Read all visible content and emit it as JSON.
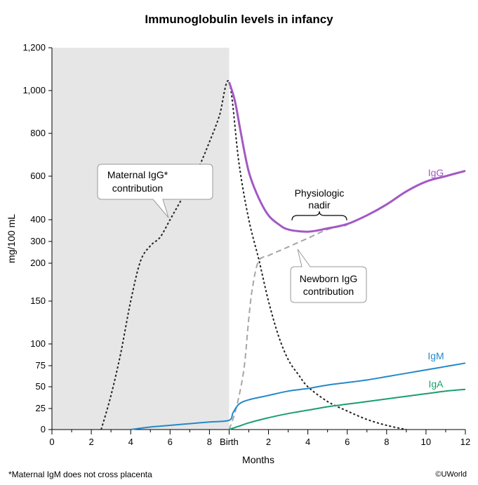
{
  "chart_data": {
    "type": "line",
    "title": "Immunoglobulin levels in infancy",
    "xlabel": "Months",
    "ylabel": "mg/100 mL",
    "x_ticks": [
      "0",
      "2",
      "4",
      "6",
      "8",
      "Birth",
      "2",
      "4",
      "6",
      "8",
      "10",
      "12"
    ],
    "y_ticks": [
      "0",
      "25",
      "50",
      "75",
      "100",
      "150",
      "200",
      "300",
      "400",
      "600",
      "800",
      "1,000",
      "1,200"
    ],
    "shaded_region": "prenatal months 0 to Birth",
    "series": [
      {
        "name": "IgG",
        "color": "#a259c4",
        "style": "solid",
        "x": [
          9,
          9.3,
          9.6,
          10,
          10.5,
          11,
          11.5,
          12,
          13,
          14,
          15,
          16,
          17,
          18,
          19,
          20,
          21
        ],
        "y": [
          1040,
          950,
          800,
          620,
          500,
          420,
          380,
          355,
          345,
          360,
          380,
          420,
          470,
          530,
          575,
          600,
          625
        ]
      },
      {
        "name": "IgM",
        "color": "#2389c9",
        "style": "solid",
        "x": [
          4,
          5,
          6,
          7,
          8,
          9,
          9.2,
          9.5,
          10,
          11,
          12,
          13,
          14,
          15,
          16,
          17,
          18,
          19,
          20,
          21
        ],
        "y": [
          0,
          3,
          5,
          7,
          9,
          11,
          20,
          30,
          35,
          40,
          45,
          48,
          52,
          55,
          58,
          62,
          66,
          70,
          74,
          78
        ]
      },
      {
        "name": "IgA",
        "color": "#1a9e6e",
        "style": "solid",
        "x": [
          9,
          9.5,
          10,
          11,
          12,
          13,
          14,
          15,
          16,
          17,
          18,
          19,
          20,
          21
        ],
        "y": [
          0,
          4,
          8,
          14,
          19,
          23,
          27,
          30,
          33,
          36,
          39,
          42,
          45,
          47
        ]
      },
      {
        "name": "Maternal IgG contribution",
        "color": "#222222",
        "style": "dotted",
        "x": [
          2.5,
          3,
          3.5,
          4,
          4.5,
          5,
          5.5,
          6,
          6.5,
          7,
          7.5,
          8,
          8.5,
          9,
          9.5,
          10,
          10.5,
          11,
          11.5,
          12,
          12.5,
          13,
          14,
          15,
          16,
          17,
          18
        ],
        "y": [
          0,
          40,
          90,
          150,
          210,
          280,
          320,
          400,
          480,
          560,
          650,
          760,
          880,
          1040,
          660,
          400,
          220,
          150,
          110,
          82,
          65,
          50,
          33,
          22,
          12,
          5,
          0
        ]
      },
      {
        "name": "Newborn IgG contribution",
        "color": "#a6a6a6",
        "style": "dashed",
        "x": [
          9,
          9.3,
          9.6,
          9.8,
          10,
          10.2,
          10.5,
          11,
          11.5,
          12,
          13,
          14,
          15
        ],
        "y": [
          0,
          20,
          50,
          80,
          130,
          170,
          210,
          235,
          255,
          275,
          315,
          355,
          375
        ]
      }
    ],
    "annotations": [
      {
        "text_lines": [
          "Maternal IgG*",
          "contribution"
        ]
      },
      {
        "text_lines": [
          "Physiologic",
          "nadir"
        ]
      },
      {
        "text_lines": [
          "Newborn IgG",
          "contribution"
        ]
      },
      {
        "text": "IgG"
      },
      {
        "text": "IgM"
      },
      {
        "text": "IgA"
      }
    ],
    "footnote": "*Maternal IgM does not cross placenta",
    "copyright": "©UWorld"
  }
}
